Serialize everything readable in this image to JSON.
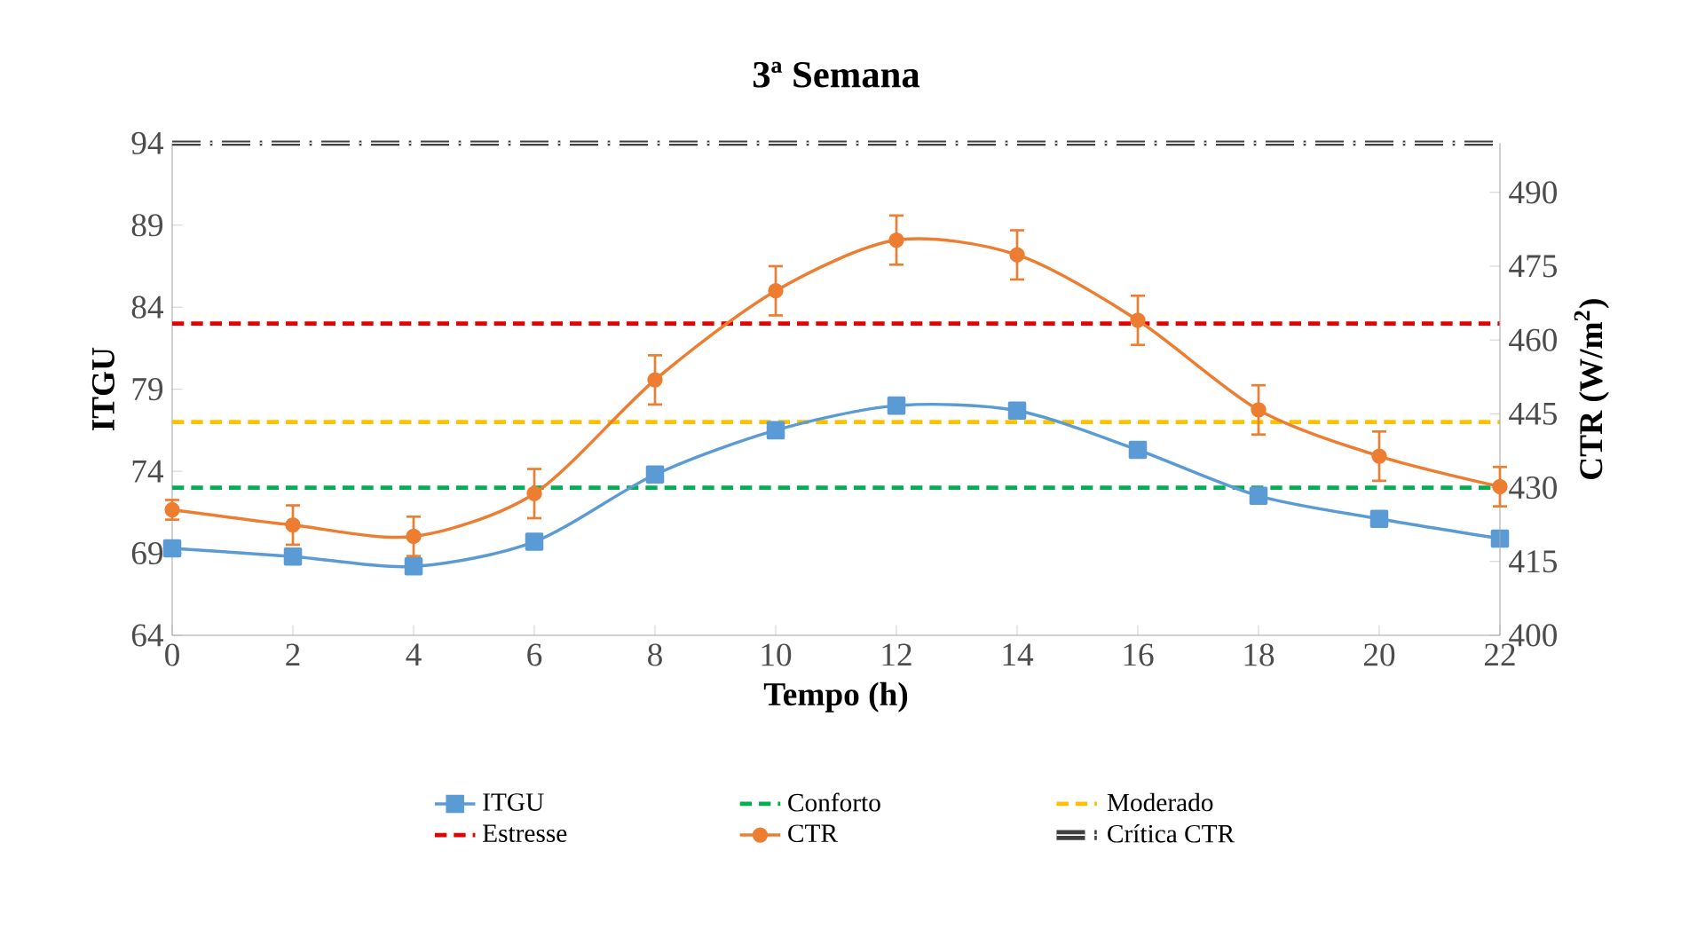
{
  "chart_data": {
    "type": "line",
    "title": "3ª Semana",
    "xlabel": "Tempo (h)",
    "ylabel": "ITGU",
    "y2label": "CTR (W/m$^{2}$)",
    "x": [
      0,
      2,
      4,
      6,
      8,
      10,
      12,
      14,
      16,
      18,
      20,
      22
    ],
    "xlim": [
      0,
      22
    ],
    "xticks": [
      0,
      2,
      4,
      6,
      8,
      10,
      12,
      14,
      16,
      18,
      20,
      22
    ],
    "ylim": [
      64,
      94
    ],
    "yticks": [
      64,
      69,
      74,
      79,
      84,
      89,
      94
    ],
    "y2lim": [
      400,
      500
    ],
    "y2ticks": [
      400,
      415,
      430,
      445,
      460,
      475,
      490
    ],
    "series": [
      {
        "name": "ITGU",
        "color": "#5b9bd5",
        "marker": "square",
        "line_style": "solid",
        "values": [
          69.3,
          68.8,
          68.2,
          69.7,
          73.8,
          76.5,
          78.0,
          77.7,
          75.3,
          72.5,
          71.1,
          69.9
        ]
      },
      {
        "name": "CTR",
        "color": "#ed7d31",
        "marker": "circle",
        "line_style": "solid",
        "axis": "y2",
        "values": [
          425.5,
          422.4,
          420.1,
          428.8,
          451.9,
          470.0,
          480.3,
          477.3,
          464.0,
          445.8,
          436.4,
          430.2
        ],
        "errors": [
          2,
          4,
          4,
          5,
          5,
          5,
          5,
          5,
          5,
          5,
          5,
          4
        ]
      }
    ],
    "ref_lines": [
      {
        "axis": "y",
        "value": 73,
        "label": "Conforto",
        "color": "#00b050",
        "line_style": "dashed"
      },
      {
        "axis": "y",
        "value": 77,
        "label": "Moderado",
        "color": "#ffc000",
        "line_style": "dashed"
      },
      {
        "axis": "y",
        "value": 83,
        "label": "Estresse",
        "color": "#e60000",
        "line_style": "dashed"
      },
      {
        "axis": "y2",
        "value": 500,
        "label": "Crítica CTR",
        "color": "#404040",
        "line_style": "dashdot"
      }
    ],
    "legend": "bottom",
    "grid": false
  }
}
